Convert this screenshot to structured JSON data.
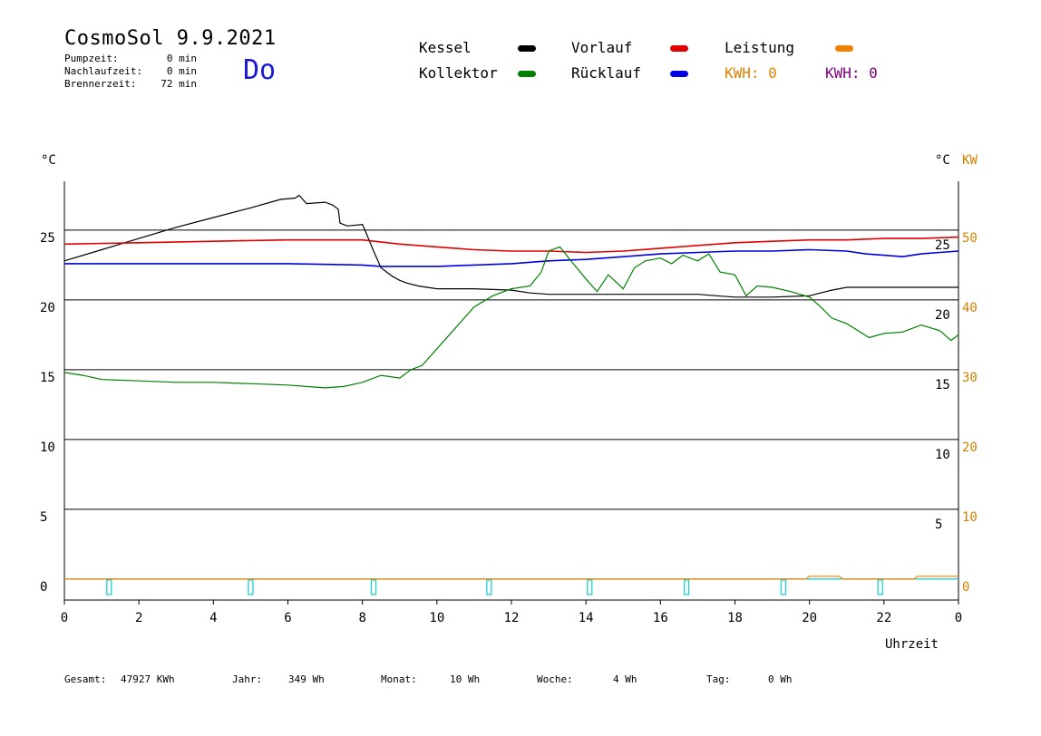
{
  "header": {
    "title": "CosmoSol 9.9.2021",
    "weekday": "Do",
    "info": [
      {
        "label": "Pumpzeit:",
        "value": "0 min"
      },
      {
        "label": "Nachlaufzeit:",
        "value": "0 min"
      },
      {
        "label": "Brennerzeit:",
        "value": "72 min"
      }
    ]
  },
  "legend": [
    {
      "label": "Kessel",
      "color": "#000000"
    },
    {
      "label": "Vorlauf",
      "color": "#e00000"
    },
    {
      "label": "Leistung",
      "color": "#f08000"
    },
    {
      "label": "Kollektor",
      "color": "#008000"
    },
    {
      "label": "Rücklauf",
      "color": "#0000e0"
    }
  ],
  "kwh": [
    {
      "text": "KWH: 0",
      "color": "#e08000"
    },
    {
      "text": "KWH: 0",
      "color": "#800080"
    }
  ],
  "footer": [
    {
      "label": "Gesamt:",
      "value": "47927 KWh"
    },
    {
      "label": "Jahr:",
      "value": "349 Wh"
    },
    {
      "label": "Monat:",
      "value": "10 Wh"
    },
    {
      "label": "Woche:",
      "value": "4 Wh"
    },
    {
      "label": "Tag:",
      "value": "0 Wh"
    }
  ],
  "chart_data": {
    "type": "line",
    "xlabel": "Uhrzeit",
    "x_tick_labels": [
      "0",
      "2",
      "4",
      "6",
      "8",
      "10",
      "12",
      "14",
      "16",
      "18",
      "20",
      "22",
      "0"
    ],
    "xlim": [
      0,
      24
    ],
    "left_unit": "°C",
    "right_unit": "°C",
    "right_power_unit": "KW",
    "ylim": [
      -1.5,
      28.5
    ],
    "left_ticks": [
      "0",
      "5",
      "10",
      "15",
      "20",
      "25"
    ],
    "right_ticks": [
      "5",
      "10",
      "15",
      "20",
      "25"
    ],
    "power_ticks": [
      "0",
      "10",
      "20",
      "30",
      "40",
      "50"
    ],
    "grid": true,
    "series": [
      {
        "name": "Kessel",
        "color": "#000000",
        "x": [
          0,
          1,
          2,
          3,
          4,
          5,
          5.8,
          6.2,
          6.3,
          6.5,
          7,
          7.2,
          7.35,
          7.4,
          7.6,
          8,
          8.1,
          8.3,
          8.5,
          8.8,
          9,
          9.2,
          9.5,
          10,
          11,
          12,
          12.5,
          13,
          14,
          15,
          16,
          17,
          17.5,
          18,
          19,
          20,
          20.3,
          20.6,
          21,
          22,
          23,
          24
        ],
        "y": [
          22.8,
          23.6,
          24.4,
          25.2,
          25.9,
          26.6,
          27.2,
          27.3,
          27.5,
          26.9,
          27.0,
          26.8,
          26.5,
          25.5,
          25.3,
          25.4,
          24.8,
          23.5,
          22.3,
          21.7,
          21.4,
          21.2,
          21.0,
          20.8,
          20.8,
          20.7,
          20.5,
          20.4,
          20.4,
          20.4,
          20.4,
          20.4,
          20.3,
          20.2,
          20.2,
          20.3,
          20.5,
          20.7,
          20.9,
          20.9,
          20.9,
          20.9
        ]
      },
      {
        "name": "Vorlauf",
        "color": "#e00000",
        "x": [
          0,
          2,
          4,
          6,
          8,
          9,
          10,
          11,
          12,
          13,
          14,
          15,
          16,
          17,
          18,
          19,
          20,
          21,
          22,
          23,
          24
        ],
        "y": [
          24.0,
          24.1,
          24.2,
          24.3,
          24.3,
          24.0,
          23.8,
          23.6,
          23.5,
          23.5,
          23.4,
          23.5,
          23.7,
          23.9,
          24.1,
          24.2,
          24.3,
          24.3,
          24.4,
          24.4,
          24.5
        ]
      },
      {
        "name": "Rücklauf",
        "color": "#0000e0",
        "x": [
          0,
          2,
          4,
          6,
          8,
          8.5,
          9,
          10,
          11,
          12,
          13,
          14,
          15,
          16,
          17,
          18,
          19,
          20,
          21,
          21.5,
          22,
          22.5,
          23,
          23.5,
          24
        ],
        "y": [
          22.6,
          22.6,
          22.6,
          22.6,
          22.5,
          22.4,
          22.4,
          22.4,
          22.5,
          22.6,
          22.8,
          22.9,
          23.1,
          23.3,
          23.4,
          23.5,
          23.5,
          23.6,
          23.5,
          23.3,
          23.2,
          23.1,
          23.3,
          23.4,
          23.5
        ]
      },
      {
        "name": "Kollektor",
        "color": "#008000",
        "x": [
          0,
          0.5,
          1,
          2,
          3,
          4,
          5,
          6,
          6.5,
          7,
          7.5,
          8,
          8.5,
          9,
          9.3,
          9.6,
          10,
          10.5,
          11,
          11.5,
          12,
          12.5,
          12.8,
          13,
          13.3,
          13.6,
          14,
          14.3,
          14.6,
          15,
          15.3,
          15.6,
          16,
          16.3,
          16.6,
          17,
          17.3,
          17.6,
          18,
          18.3,
          18.6,
          19,
          19.5,
          20,
          20.3,
          20.6,
          21,
          21.3,
          21.6,
          22,
          22.5,
          23,
          23.5,
          23.8,
          24
        ],
        "y": [
          14.8,
          14.6,
          14.3,
          14.2,
          14.1,
          14.1,
          14.0,
          13.9,
          13.8,
          13.7,
          13.8,
          14.1,
          14.6,
          14.4,
          15.0,
          15.3,
          16.5,
          18.0,
          19.5,
          20.3,
          20.8,
          21.0,
          22.0,
          23.5,
          23.8,
          22.8,
          21.5,
          20.6,
          21.8,
          20.8,
          22.3,
          22.8,
          23.0,
          22.6,
          23.2,
          22.8,
          23.3,
          22.0,
          21.8,
          20.3,
          21.0,
          20.9,
          20.6,
          20.2,
          19.5,
          18.7,
          18.3,
          17.8,
          17.3,
          17.6,
          17.7,
          18.2,
          17.8,
          17.1,
          17.5
        ]
      },
      {
        "name": "Leistung",
        "color": "#f08000",
        "x": [
          0,
          19.9,
          20,
          20.8,
          20.9,
          22.8,
          22.9,
          24
        ],
        "y": [
          0,
          0,
          0.2,
          0.2,
          0,
          0,
          0.2,
          0.2
        ]
      }
    ],
    "pump_marker_times": [
      1.2,
      5,
      8.3,
      11.4,
      14.1,
      16.7,
      19.3,
      21.9
    ]
  }
}
